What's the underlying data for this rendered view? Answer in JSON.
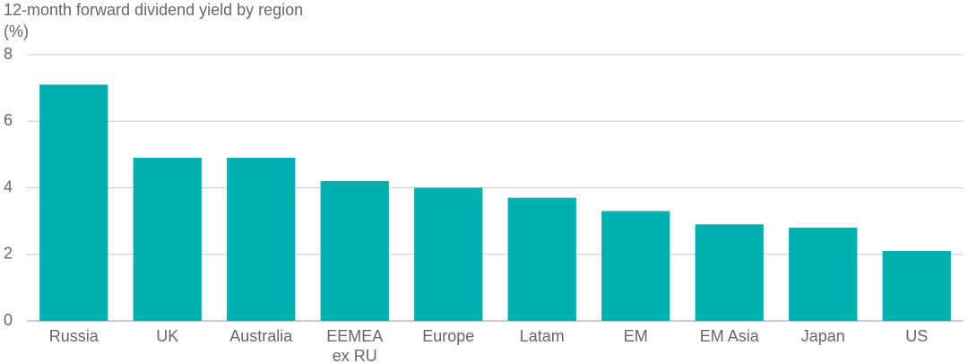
{
  "chart_data": {
    "type": "bar",
    "title": "12-month forward dividend yield by region",
    "ylabel": "(%)",
    "categories": [
      "Russia",
      "UK",
      "Australia",
      "EEMEA\nex RU",
      "Europe",
      "Latam",
      "EM",
      "EM Asia",
      "Japan",
      "US"
    ],
    "values": [
      7.1,
      4.9,
      4.9,
      4.2,
      4.0,
      3.7,
      3.3,
      2.9,
      2.8,
      2.1
    ],
    "color": "#00b0b0",
    "ylim": [
      0,
      8
    ],
    "yticks": [
      0,
      2,
      4,
      6,
      8
    ],
    "grid": true
  }
}
